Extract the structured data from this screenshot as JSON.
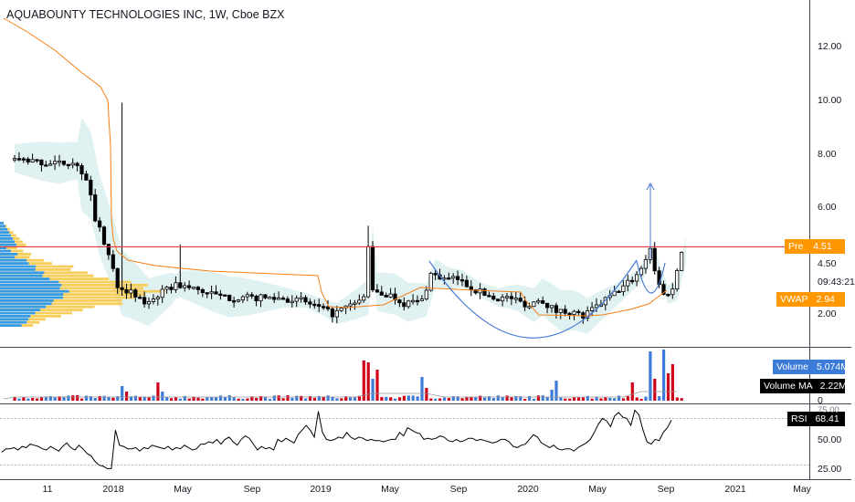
{
  "title": "AQUABOUNTY TECHNOLOGIES INC, 1W, Cboe BZX",
  "chart_data": [
    {
      "type": "candlestick",
      "pane": "price",
      "y_ticks": [
        "12.00",
        "10.00",
        "8.00",
        "6.00",
        "4.50",
        "2.00"
      ],
      "ylim": [
        1.2,
        13.6
      ],
      "x_ticks": [
        "11",
        "2018",
        "May",
        "Sep",
        "2019",
        "May",
        "Sep",
        "2020",
        "May",
        "Sep",
        "2021",
        "May"
      ],
      "pre_label": "Pre",
      "pre_value": "4.51",
      "pre_line_value": 4.51,
      "time_label": "09:43:21",
      "vwap_label": "VWAP",
      "vwap_value": "2.94",
      "series": [
        {
          "name": "price",
          "color": "#000000"
        },
        {
          "name": "VWAP",
          "color": "#f57f17"
        }
      ],
      "annotations": [
        "cup-arc",
        "up-arrow"
      ]
    },
    {
      "type": "bar",
      "pane": "volume",
      "volume_label": "Volume",
      "volume_value": "5.074M",
      "ma_label": "Volume MA",
      "ma_value": "2.22M",
      "colors": {
        "up": "#3d7bd9",
        "down": "#d0021b"
      }
    },
    {
      "type": "line",
      "pane": "rsi",
      "rsi_label": "RSI",
      "rsi_value": "68.41",
      "y_ticks": [
        "75.00",
        "50.00",
        "25.00"
      ],
      "ylim": [
        18,
        80
      ],
      "levels": [
        70,
        30
      ],
      "values": [
        41,
        44,
        44,
        45,
        43,
        46,
        45,
        48,
        47,
        46,
        44,
        43,
        46,
        44,
        42,
        46,
        49,
        45,
        43,
        47,
        44,
        40,
        38,
        33,
        30,
        29,
        27,
        27,
        60,
        47,
        46,
        44,
        44,
        45,
        42,
        45,
        44,
        47,
        46,
        45,
        44,
        46,
        43,
        45,
        44,
        47,
        45,
        43,
        44,
        48,
        48,
        50,
        49,
        52,
        48,
        52,
        54,
        50,
        47,
        52,
        55,
        53,
        48,
        43,
        46,
        44,
        45,
        43,
        52,
        50,
        53,
        51,
        49,
        56,
        60,
        64,
        60,
        54,
        76,
        58,
        52,
        51,
        52,
        54,
        53,
        58,
        54,
        52,
        54,
        53,
        51,
        52,
        51,
        51,
        50,
        51,
        52,
        52,
        58,
        55,
        62,
        60,
        58,
        57,
        52,
        53,
        52,
        53,
        55,
        54,
        51,
        50,
        52,
        50,
        51,
        53,
        53,
        51,
        52,
        51,
        50,
        49,
        50,
        52,
        52,
        50,
        46,
        45,
        47,
        48,
        52,
        56,
        54,
        49,
        47,
        45,
        47,
        44,
        43,
        44,
        44,
        42,
        45,
        47,
        49,
        52,
        58,
        65,
        70,
        68,
        63,
        72,
        75,
        71,
        70,
        64,
        77,
        73,
        60,
        50,
        48,
        52,
        51,
        58,
        62,
        68.41
      ]
    }
  ],
  "colors": {
    "accent": "#ff9800",
    "pre_line": "#e53935",
    "bands": "#dbeeee",
    "volume_profile_blue": "#2196f3",
    "volume_profile_yellow": "#f7c948"
  }
}
